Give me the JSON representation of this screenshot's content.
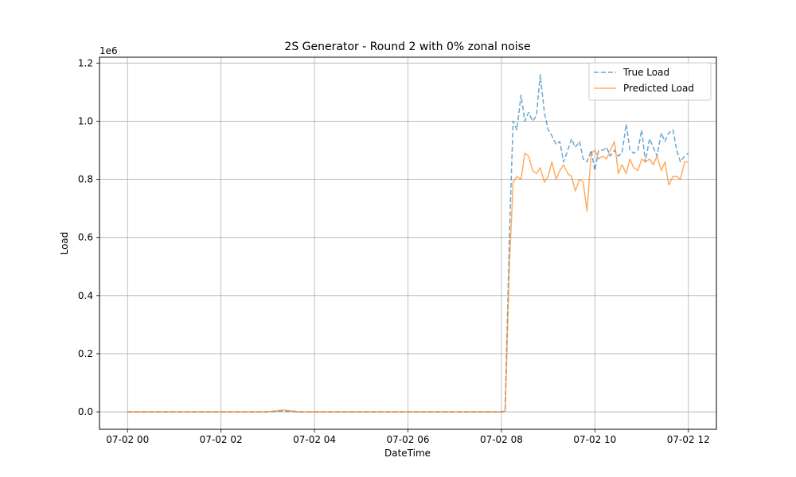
{
  "chart_data": {
    "type": "line",
    "title": "2S Generator - Round 2 with 0% zonal noise",
    "xlabel": "DateTime",
    "ylabel": "Load",
    "y_offset_text": "1e6",
    "grid": true,
    "legend_position": "top-right",
    "xlim": [
      "07-02 00",
      "07-02 12"
    ],
    "ylim": [
      -0.06,
      1.22
    ],
    "x_ticks": [
      "07-02 00",
      "07-02 02",
      "07-02 04",
      "07-02 06",
      "07-02 08",
      "07-02 10",
      "07-02 12"
    ],
    "y_ticks": [
      "0.0",
      "0.2",
      "0.4",
      "0.6",
      "0.8",
      "1.0",
      "1.2"
    ],
    "x_hours": [
      0,
      0.33,
      0.67,
      1,
      1.33,
      1.67,
      2,
      2.33,
      2.67,
      3,
      3.33,
      3.67,
      4,
      4.33,
      4.67,
      5,
      5.33,
      5.67,
      6,
      6.33,
      6.67,
      7,
      7.33,
      7.67,
      8,
      8.08,
      8.17,
      8.25,
      8.33,
      8.42,
      8.5,
      8.58,
      8.67,
      8.75,
      8.83,
      8.92,
      9,
      9.08,
      9.17,
      9.25,
      9.33,
      9.42,
      9.5,
      9.58,
      9.67,
      9.75,
      9.83,
      9.92,
      10,
      10.08,
      10.17,
      10.25,
      10.33,
      10.42,
      10.5,
      10.58,
      10.67,
      10.75,
      10.83,
      10.92,
      11,
      11.08,
      11.17,
      11.25,
      11.33,
      11.42,
      11.5,
      11.58,
      11.67,
      11.75,
      11.83,
      11.92,
      12
    ],
    "series": [
      {
        "name": "True Load",
        "color": "#1f77b4",
        "style": "dashed",
        "values": [
          0,
          0,
          0,
          0,
          0,
          0,
          0,
          0,
          0,
          0,
          0.003,
          0,
          0,
          0,
          0,
          0,
          0,
          0,
          0,
          0,
          0,
          0,
          0,
          0,
          0,
          0.002,
          0.6,
          1.0,
          0.97,
          1.09,
          1.0,
          1.03,
          1.0,
          1.02,
          1.16,
          1.03,
          0.97,
          0.95,
          0.92,
          0.93,
          0.86,
          0.9,
          0.94,
          0.91,
          0.93,
          0.87,
          0.86,
          0.9,
          0.83,
          0.9,
          0.9,
          0.91,
          0.88,
          0.9,
          0.88,
          0.89,
          0.99,
          0.9,
          0.89,
          0.9,
          0.97,
          0.86,
          0.94,
          0.91,
          0.88,
          0.96,
          0.93,
          0.96,
          0.97,
          0.9,
          0.86,
          0.88,
          0.89
        ]
      },
      {
        "name": "Predicted Load",
        "color": "#ff7f0e",
        "style": "solid",
        "values": [
          0,
          0,
          0,
          0,
          0,
          0,
          0,
          0,
          0,
          0,
          0.007,
          0,
          0,
          0,
          0,
          0,
          0,
          0,
          0,
          0,
          0,
          0,
          0,
          0,
          0,
          0.002,
          0.5,
          0.79,
          0.81,
          0.8,
          0.89,
          0.88,
          0.83,
          0.82,
          0.84,
          0.79,
          0.81,
          0.86,
          0.8,
          0.83,
          0.85,
          0.82,
          0.81,
          0.76,
          0.8,
          0.79,
          0.69,
          0.89,
          0.9,
          0.87,
          0.88,
          0.87,
          0.9,
          0.93,
          0.82,
          0.85,
          0.82,
          0.87,
          0.84,
          0.83,
          0.87,
          0.86,
          0.87,
          0.85,
          0.88,
          0.83,
          0.86,
          0.78,
          0.81,
          0.81,
          0.8,
          0.86,
          0.86
        ]
      }
    ]
  }
}
